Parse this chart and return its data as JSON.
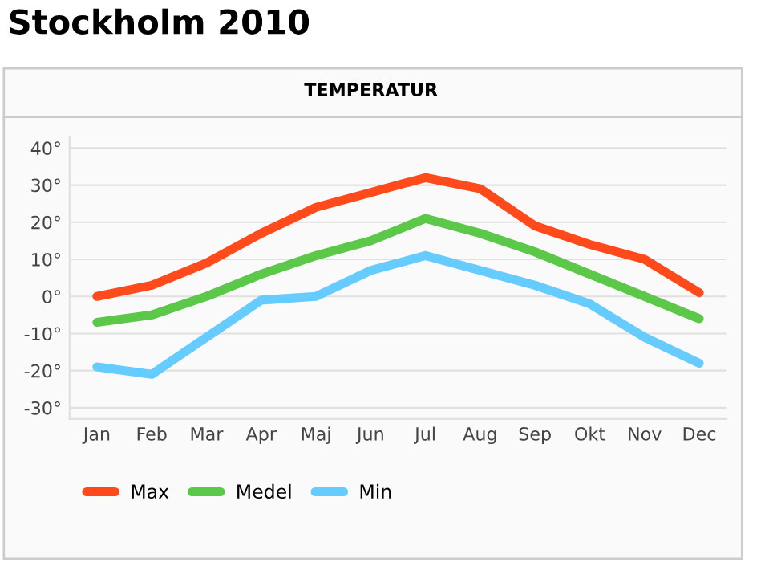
{
  "chart_data": {
    "type": "line",
    "title": "Stockholm 2010",
    "subtitle": "TEMPERATUR",
    "categories": [
      "Jan",
      "Feb",
      "Mar",
      "Apr",
      "Maj",
      "Jun",
      "Jul",
      "Aug",
      "Sep",
      "Okt",
      "Nov",
      "Dec"
    ],
    "series": [
      {
        "name": "Max",
        "color": "#ff4a1c",
        "values": [
          0,
          3,
          9,
          17,
          24,
          28,
          32,
          29,
          19,
          14,
          10,
          1
        ]
      },
      {
        "name": "Medel",
        "color": "#5cc84a",
        "values": [
          -7,
          -5,
          0,
          6,
          11,
          15,
          21,
          17,
          12,
          6,
          0,
          -6
        ]
      },
      {
        "name": "Min",
        "color": "#66ccff",
        "values": [
          -19,
          -21,
          -11,
          -1,
          0,
          7,
          11,
          7,
          3,
          -2,
          -11,
          -18
        ]
      }
    ],
    "ylim": [
      -33,
      43
    ],
    "yticks": [
      {
        "value": -30,
        "label": "-30°"
      },
      {
        "value": -20,
        "label": "-20°"
      },
      {
        "value": -10,
        "label": "-10°"
      },
      {
        "value": 0,
        "label": "0°"
      },
      {
        "value": 10,
        "label": "10°"
      },
      {
        "value": 20,
        "label": "20°"
      },
      {
        "value": 30,
        "label": "30°"
      },
      {
        "value": 40,
        "label": "40°"
      }
    ],
    "grid": "y",
    "legend": "bottom left",
    "marker": "none",
    "line_style": "solid"
  }
}
